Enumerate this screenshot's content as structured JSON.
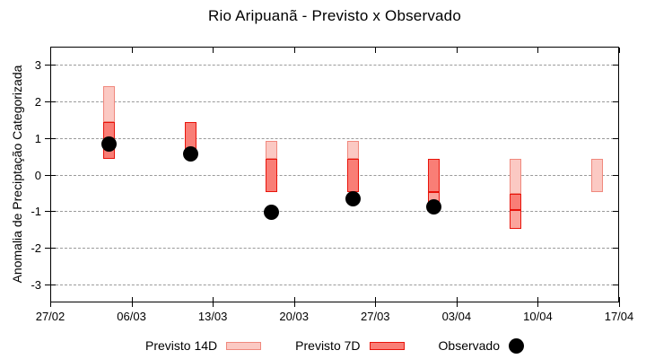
{
  "title": "Rio Aripuanã - Previsto x Observado",
  "colors": {
    "light_fill": "#fbc9c3",
    "light_border": "#f0887d",
    "dark_fill": "#f97e76",
    "dark_border": "#e8140b",
    "medium_fill": "#fba49c",
    "medium_border": "#e8140b",
    "observed": "#000000",
    "grid": "#9a9a9a",
    "axis": "#000000"
  },
  "chart_data": {
    "type": "bar",
    "title": "Rio Aripuanã - Previsto x Observado",
    "xlabel": "",
    "ylabel": "Anomalia de Preciptação Categorizada",
    "ylim": [
      -3.5,
      3.5
    ],
    "y_ticks": [
      3,
      2,
      1,
      0,
      -1,
      -2,
      -3
    ],
    "x_ticks": [
      "27/02",
      "06/03",
      "13/03",
      "20/03",
      "27/03",
      "03/04",
      "10/04",
      "17/04"
    ],
    "x_tick_days": [
      0,
      7,
      14,
      21,
      28,
      35,
      42,
      49
    ],
    "xlim_days": [
      0,
      49
    ],
    "grid": "horizontal-dashed",
    "legend_position": "below",
    "legend": [
      {
        "label": "Previsto 14D",
        "style": "light",
        "marker": "box"
      },
      {
        "label": "Previsto 7D",
        "style": "dark",
        "marker": "box"
      },
      {
        "label": "Observado",
        "style": "observed",
        "marker": "dot"
      }
    ],
    "clusters": [
      {
        "date": "04/03",
        "day": 5,
        "segments": [
          {
            "style": "light",
            "from": 1.45,
            "to": 2.45
          },
          {
            "style": "dark",
            "from": 0.45,
            "to": 1.45
          }
        ],
        "observed": 0.85
      },
      {
        "date": "11/03",
        "day": 12,
        "segments": [
          {
            "style": "dark",
            "from": 0.45,
            "to": 1.45
          }
        ],
        "observed": 0.6
      },
      {
        "date": "18/03",
        "day": 19,
        "segments": [
          {
            "style": "light",
            "from": 0.45,
            "to": 0.95
          },
          {
            "style": "dark",
            "from": -0.45,
            "to": 0.45
          }
        ],
        "observed": -1.0
      },
      {
        "date": "25/03",
        "day": 26,
        "segments": [
          {
            "style": "light",
            "from": 0.45,
            "to": 0.95
          },
          {
            "style": "dark",
            "from": -0.45,
            "to": 0.45
          }
        ],
        "observed": -0.65
      },
      {
        "date": "01/04",
        "day": 33,
        "segments": [
          {
            "style": "dark",
            "from": -0.45,
            "to": 0.45
          },
          {
            "style": "medium",
            "from": -0.95,
            "to": -0.45
          }
        ],
        "observed": -0.85
      },
      {
        "date": "08/04",
        "day": 40,
        "segments": [
          {
            "style": "light",
            "from": -0.5,
            "to": 0.45
          },
          {
            "style": "dark",
            "from": -0.95,
            "to": -0.5
          },
          {
            "style": "medium",
            "from": -1.45,
            "to": -0.95
          }
        ],
        "observed": null
      },
      {
        "date": "15/04",
        "day": 47,
        "segments": [
          {
            "style": "light",
            "from": -0.45,
            "to": 0.45
          }
        ],
        "observed": null
      }
    ]
  }
}
